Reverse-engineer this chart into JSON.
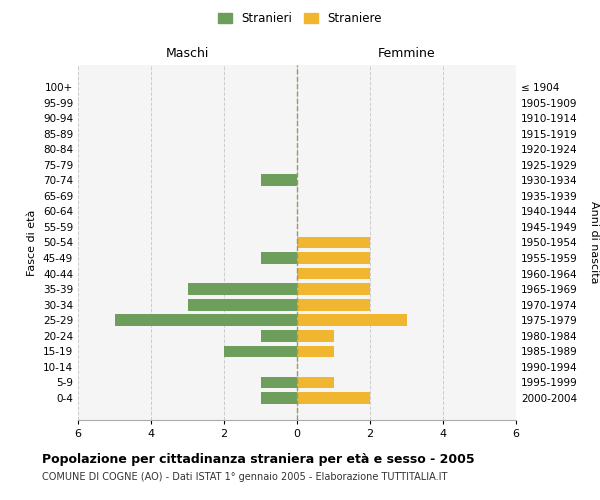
{
  "age_groups": [
    "100+",
    "95-99",
    "90-94",
    "85-89",
    "80-84",
    "75-79",
    "70-74",
    "65-69",
    "60-64",
    "55-59",
    "50-54",
    "45-49",
    "40-44",
    "35-39",
    "30-34",
    "25-29",
    "20-24",
    "15-19",
    "10-14",
    "5-9",
    "0-4"
  ],
  "birth_years": [
    "≤ 1904",
    "1905-1909",
    "1910-1914",
    "1915-1919",
    "1920-1924",
    "1925-1929",
    "1930-1934",
    "1935-1939",
    "1940-1944",
    "1945-1949",
    "1950-1954",
    "1955-1959",
    "1960-1964",
    "1965-1969",
    "1970-1974",
    "1975-1979",
    "1980-1984",
    "1985-1989",
    "1990-1994",
    "1995-1999",
    "2000-2004"
  ],
  "males": [
    0,
    0,
    0,
    0,
    0,
    0,
    1,
    0,
    0,
    0,
    0,
    1,
    0,
    3,
    3,
    5,
    1,
    2,
    0,
    1,
    1
  ],
  "females": [
    0,
    0,
    0,
    0,
    0,
    0,
    0,
    0,
    0,
    0,
    2,
    2,
    2,
    2,
    2,
    3,
    1,
    1,
    0,
    1,
    2
  ],
  "male_color": "#6d9e5b",
  "female_color": "#f0b630",
  "title": "Popolazione per cittadinanza straniera per età e sesso - 2005",
  "subtitle": "COMUNE DI COGNE (AO) - Dati ISTAT 1° gennaio 2005 - Elaborazione TUTTITALIA.IT",
  "ylabel_left": "Fasce di età",
  "ylabel_right": "Anni di nascita",
  "xlabel_left": "Maschi",
  "xlabel_right": "Femmine",
  "legend_male": "Stranieri",
  "legend_female": "Straniere",
  "xlim": 6,
  "background_color": "#ffffff",
  "plot_bg_color": "#f5f5f5",
  "grid_color": "#cccccc"
}
